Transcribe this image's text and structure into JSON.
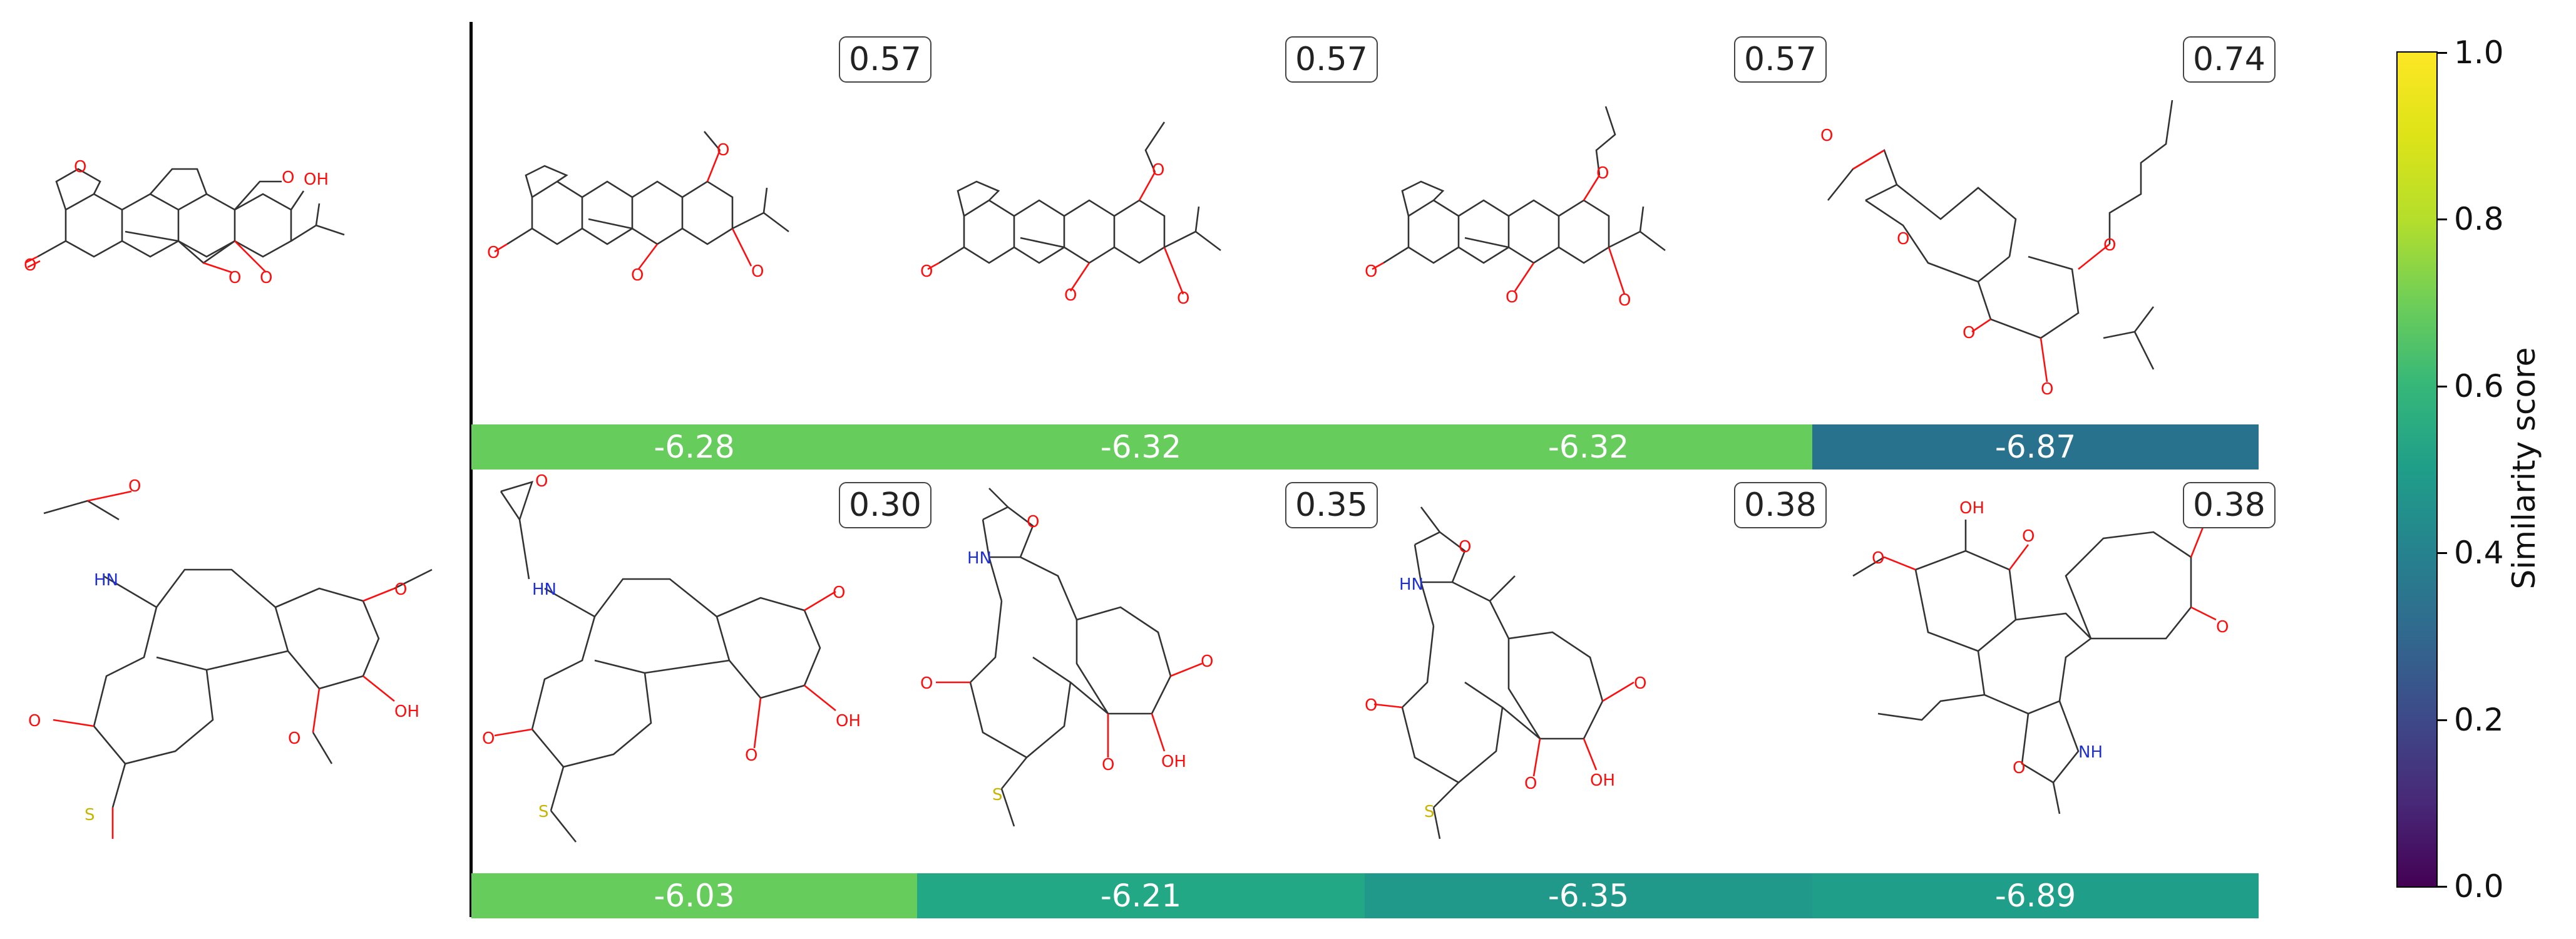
{
  "chart_data": {
    "type": "molecule-grid",
    "rows": [
      {
        "query": {
          "name": "query-molecule-1"
        },
        "items": [
          {
            "similarity": "0.57",
            "energy": "-6.28",
            "color": "#66cc5c"
          },
          {
            "similarity": "0.57",
            "energy": "-6.32",
            "color": "#66cc5c"
          },
          {
            "similarity": "0.57",
            "energy": "-6.32",
            "color": "#66cc5c"
          },
          {
            "similarity": "0.74",
            "energy": "-6.87",
            "color": "#29728e"
          }
        ]
      },
      {
        "query": {
          "name": "query-molecule-2"
        },
        "items": [
          {
            "similarity": "0.30",
            "energy": "-6.03",
            "color": "#66cc5c"
          },
          {
            "similarity": "0.35",
            "energy": "-6.21",
            "color": "#22a884"
          },
          {
            "similarity": "0.38",
            "energy": "-6.35",
            "color": "#21998a"
          },
          {
            "similarity": "0.38",
            "energy": "-6.89",
            "color": "#1f9e89"
          }
        ]
      }
    ],
    "colorbar": {
      "label": "Similarity score",
      "ticks": [
        "0.0",
        "0.2",
        "0.4",
        "0.6",
        "0.8",
        "1.0"
      ],
      "range": [
        0.0,
        1.0
      ],
      "colormap": "viridis"
    }
  }
}
